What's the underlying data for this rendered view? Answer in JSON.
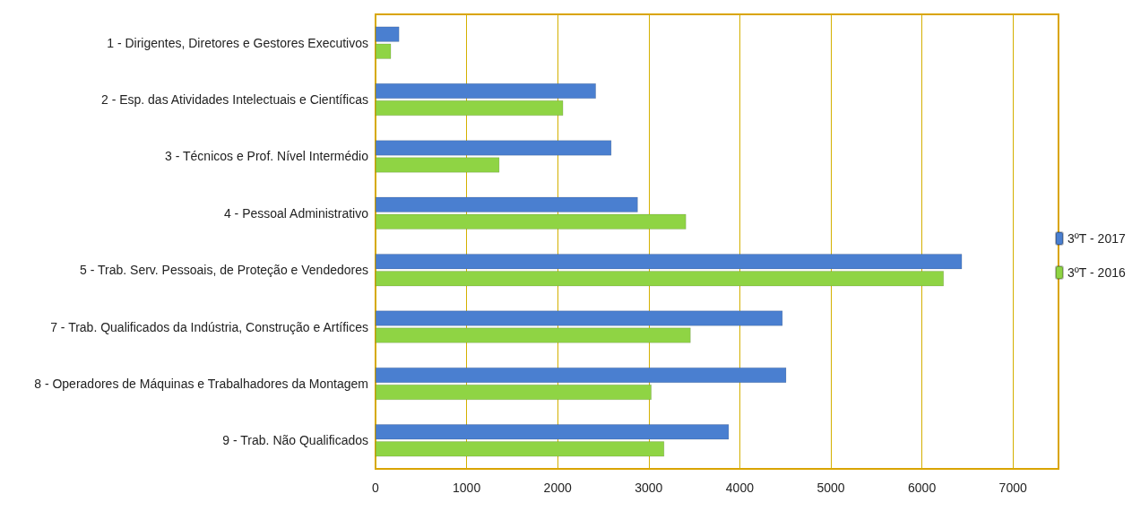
{
  "chart_data": {
    "type": "bar",
    "orientation": "horizontal",
    "categories": [
      "1 - Dirigentes, Diretores e Gestores Executivos",
      "2 - Esp. das Atividades Intelectuais e Científicas",
      "3 - Técnicos e Prof. Nível Intermédio",
      "4 - Pessoal Administrativo",
      "5 - Trab. Serv. Pessoais, de Proteção e Vendedores",
      "7 - Trab. Qualificados da Indústria, Construção e Artífices",
      "8 - Operadores de Máquinas e Trabalhadores da Montagem",
      "9 - Trab. Não Qualificados"
    ],
    "series": [
      {
        "name": "3ºT - 2017",
        "color": "#4a7fd0",
        "values": [
          260,
          2420,
          2590,
          2880,
          6440,
          4470,
          4510,
          3880
        ]
      },
      {
        "name": "3ºT - 2016",
        "color": "#8fd444",
        "values": [
          170,
          2060,
          1360,
          3410,
          6240,
          3460,
          3030,
          3170
        ]
      }
    ],
    "xlim": [
      0,
      7500
    ],
    "xticks": [
      0,
      1000,
      2000,
      3000,
      4000,
      5000,
      6000,
      7000
    ],
    "grid": "x",
    "legend": "right"
  }
}
